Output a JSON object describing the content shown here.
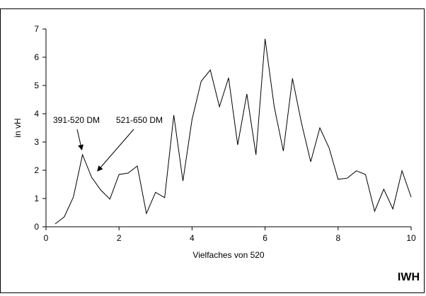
{
  "chart_data": {
    "type": "line",
    "title": "",
    "xlabel": "Vielfaches von 520",
    "ylabel": "in vH",
    "xlim": [
      0,
      10
    ],
    "ylim": [
      0,
      7
    ],
    "xticks": [
      0,
      2,
      4,
      6,
      8,
      10
    ],
    "yticks": [
      0,
      1,
      2,
      3,
      4,
      5,
      6,
      7
    ],
    "grid": false,
    "legend": "none",
    "series": [
      {
        "color": "#000000",
        "points": [
          [
            0.25,
            0.1
          ],
          [
            0.5,
            0.35
          ],
          [
            0.75,
            1.05
          ],
          [
            1.0,
            2.55
          ],
          [
            1.25,
            1.75
          ],
          [
            1.5,
            1.3
          ],
          [
            1.75,
            0.98
          ],
          [
            2.0,
            1.85
          ],
          [
            2.25,
            1.9
          ],
          [
            2.5,
            2.15
          ],
          [
            2.75,
            0.47
          ],
          [
            3.0,
            1.22
          ],
          [
            3.25,
            1.03
          ],
          [
            3.5,
            3.95
          ],
          [
            3.75,
            1.62
          ],
          [
            4.0,
            3.8
          ],
          [
            4.25,
            5.15
          ],
          [
            4.5,
            5.55
          ],
          [
            4.75,
            4.25
          ],
          [
            5.0,
            5.27
          ],
          [
            5.25,
            2.9
          ],
          [
            5.5,
            4.7
          ],
          [
            5.75,
            2.55
          ],
          [
            6.0,
            6.65
          ],
          [
            6.25,
            4.25
          ],
          [
            6.5,
            2.68
          ],
          [
            6.75,
            5.25
          ],
          [
            7.0,
            3.65
          ],
          [
            7.25,
            2.3
          ],
          [
            7.5,
            3.5
          ],
          [
            7.75,
            2.8
          ],
          [
            8.0,
            1.68
          ],
          [
            8.25,
            1.72
          ],
          [
            8.5,
            1.98
          ],
          [
            8.75,
            1.85
          ],
          [
            9.0,
            0.55
          ],
          [
            9.25,
            1.33
          ],
          [
            9.5,
            0.63
          ],
          [
            9.75,
            1.98
          ],
          [
            10.0,
            1.05
          ]
        ]
      }
    ],
    "annotations": [
      {
        "text": "391-520 DM",
        "arrow_to": [
          1.0,
          2.55
        ]
      },
      {
        "text": "521-650 DM",
        "arrow_to": [
          1.45,
          1.9
        ]
      }
    ],
    "watermark": "IWH"
  }
}
